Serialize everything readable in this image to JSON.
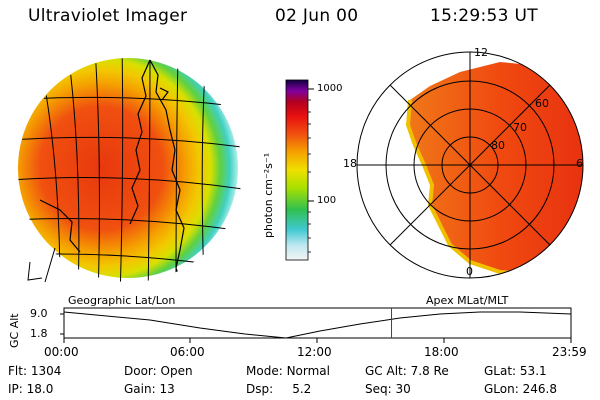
{
  "header": {
    "title": "Ultraviolet Imager",
    "date": "02 Jun 00",
    "time": "15:29:53 UT"
  },
  "colorbar": {
    "label": "photon cm⁻²s⁻¹",
    "ticks": [
      "1000",
      "100"
    ]
  },
  "polar_plot": {
    "mlt_labels": {
      "top": "12",
      "left": "18",
      "right": "6",
      "bottom": "0"
    },
    "lat_labels": [
      "60",
      "70",
      "80"
    ]
  },
  "panels": {
    "left_caption": "Geographic Lat/Lon",
    "right_caption": "Apex MLat/MLT"
  },
  "altitude_plot": {
    "axis_label": "GC Alt",
    "y_ticks": [
      "9.0",
      "1.8"
    ],
    "x_ticks": [
      "00:00",
      "06:00",
      "12:00",
      "18:00",
      "23:59"
    ],
    "marker_time_fraction": 0.646
  },
  "footer": {
    "row1": [
      {
        "key": "Flt:",
        "value": "1304"
      },
      {
        "key": "Door:",
        "value": "Open"
      },
      {
        "key": "Mode:",
        "value": "Normal"
      },
      {
        "key": "GC Alt:",
        "value": "7.8 Re"
      },
      {
        "key": "GLat:",
        "value": "53.1"
      }
    ],
    "row2": [
      {
        "key": "IP:",
        "value": "18.0"
      },
      {
        "key": "Gain:",
        "value": "13"
      },
      {
        "key": "Dsp:",
        "value": "5.2"
      },
      {
        "key": "Seq:",
        "value": "30"
      },
      {
        "key": "GLon:",
        "value": "246.8"
      }
    ]
  }
}
